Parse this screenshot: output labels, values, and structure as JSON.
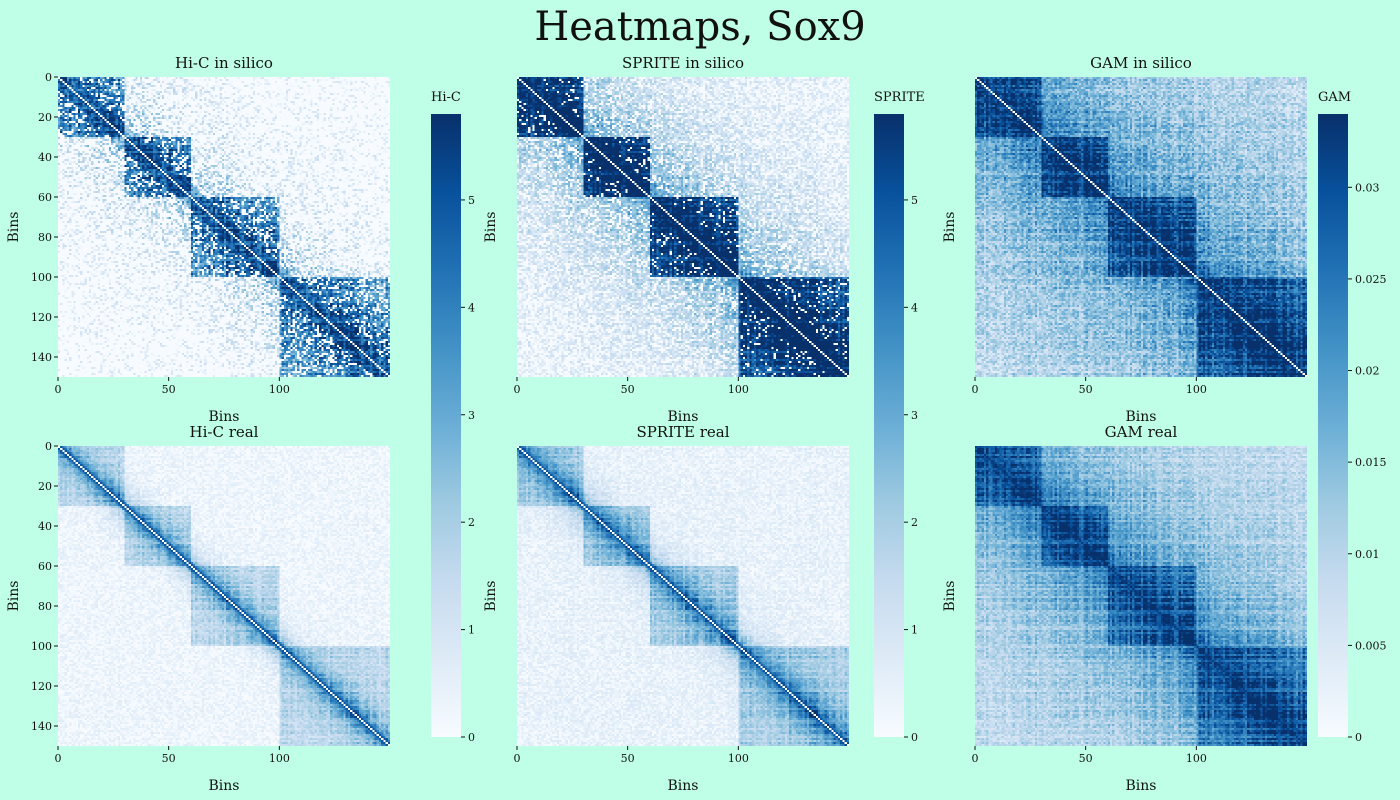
{
  "title": "Heatmaps, Sox9",
  "chart_data": {
    "type": "heatmap",
    "title": "Heatmaps, Sox9",
    "colormap": [
      "#f7fbff",
      "#deebf7",
      "#c6dbef",
      "#9ecae1",
      "#6baed6",
      "#4292c6",
      "#2171b5",
      "#08519c",
      "#08306b"
    ],
    "diagonal_color": "#ffffff",
    "matrix_size": 150,
    "tads": [
      [
        0,
        30
      ],
      [
        30,
        60
      ],
      [
        60,
        100
      ],
      [
        100,
        150
      ]
    ],
    "panels": [
      {
        "id": "hic-silico",
        "title": "Hi-C in silico",
        "xlabel": "Bins",
        "ylabel": "Bins",
        "xticks": [
          0,
          50,
          100
        ],
        "yticks": [
          0,
          20,
          40,
          60,
          80,
          100,
          120,
          140
        ],
        "vmin": 0,
        "vmax": 5.8,
        "colorbar": "hic"
      },
      {
        "id": "sprite-silico",
        "title": "SPRITE in silico",
        "xlabel": "Bins",
        "ylabel": "Bins",
        "xticks": [
          0,
          50,
          100
        ],
        "yticks": [],
        "vmin": 0,
        "vmax": 5.8,
        "colorbar": "sprite"
      },
      {
        "id": "gam-silico",
        "title": "GAM in silico",
        "xlabel": "Bins",
        "ylabel": "Bins",
        "xticks": [
          0,
          50,
          100
        ],
        "yticks": [],
        "vmin": 0,
        "vmax": 0.034,
        "colorbar": "gam"
      },
      {
        "id": "hic-real",
        "title": "Hi-C real",
        "xlabel": "Bins",
        "ylabel": "Bins",
        "xticks": [
          0,
          50,
          100
        ],
        "yticks": [
          0,
          20,
          40,
          60,
          80,
          100,
          120,
          140
        ],
        "vmin": 0,
        "vmax": 5.8
      },
      {
        "id": "sprite-real",
        "title": "SPRITE real",
        "xlabel": "Bins",
        "ylabel": "Bins",
        "xticks": [
          0,
          50,
          100
        ],
        "yticks": [],
        "vmin": 0,
        "vmax": 5.8
      },
      {
        "id": "gam-real",
        "title": "GAM real",
        "xlabel": "Bins",
        "ylabel": "Bins",
        "xticks": [
          0,
          50,
          100
        ],
        "yticks": [],
        "vmin": 0,
        "vmax": 0.034
      }
    ],
    "colorbars": {
      "hic": {
        "label": "Hi-C",
        "min": 0,
        "max": 5.8,
        "ticks": [
          "0",
          "1",
          "2",
          "3",
          "4",
          "5"
        ]
      },
      "sprite": {
        "label": "SPRITE",
        "min": 0,
        "max": 5.8,
        "ticks": [
          "0",
          "1",
          "2",
          "3",
          "4",
          "5"
        ]
      },
      "gam": {
        "label": "GAM",
        "min": 0,
        "max": 0.034,
        "ticks": [
          "0",
          "0.005",
          "0.01",
          "0.015",
          "0.02",
          "0.025",
          "0.03"
        ]
      }
    }
  }
}
